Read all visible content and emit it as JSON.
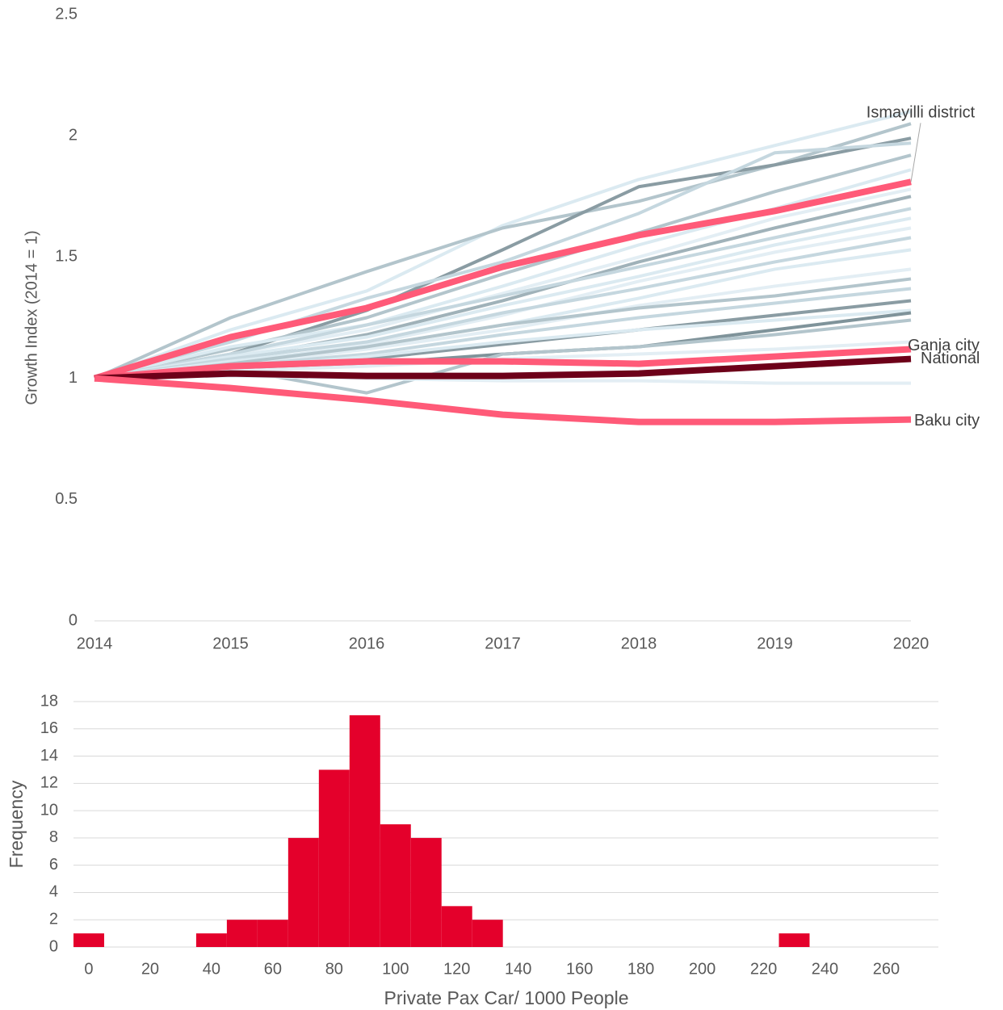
{
  "chart_data": [
    {
      "type": "line",
      "ylabel": "Growth Index (2014 = 1)",
      "x": [
        2014,
        2015,
        2016,
        2017,
        2018,
        2019,
        2020
      ],
      "xlim": [
        2014,
        2020
      ],
      "xticks": [
        2014,
        2015,
        2016,
        2017,
        2018,
        2019,
        2020
      ],
      "ylim": [
        0,
        2.5
      ],
      "yticks": [
        0,
        0.5,
        1,
        1.5,
        2,
        2.5
      ],
      "series": [
        {
          "color": "#dbeaf1",
          "values": [
            1,
            1.2,
            1.36,
            1.63,
            1.82,
            1.96,
            2.1
          ]
        },
        {
          "color": "#b3c5cc",
          "values": [
            1,
            1.25,
            1.44,
            1.62,
            1.73,
            1.88,
            2.05
          ]
        },
        {
          "color": "#8a9ca3",
          "values": [
            1,
            1.1,
            1.28,
            1.53,
            1.79,
            1.88,
            1.99
          ]
        },
        {
          "color": "#c5d7df",
          "values": [
            1,
            1.15,
            1.33,
            1.48,
            1.68,
            1.93,
            1.97
          ]
        },
        {
          "color": "#b3c5cc",
          "values": [
            1,
            1.12,
            1.25,
            1.43,
            1.6,
            1.77,
            1.92
          ]
        },
        {
          "color": "#dbeaf1",
          "values": [
            1,
            1.13,
            1.22,
            1.38,
            1.55,
            1.7,
            1.86
          ]
        },
        {
          "color": "#e3eef4",
          "values": [
            1,
            1.1,
            1.2,
            1.35,
            1.5,
            1.66,
            1.78
          ]
        },
        {
          "color": "#a0b2b9",
          "values": [
            1,
            1.08,
            1.18,
            1.32,
            1.48,
            1.62,
            1.75
          ]
        },
        {
          "color": "#c5d7df",
          "values": [
            1,
            1.1,
            1.22,
            1.34,
            1.46,
            1.58,
            1.7
          ]
        },
        {
          "color": "#dbeaf1",
          "values": [
            1,
            1.09,
            1.17,
            1.3,
            1.42,
            1.55,
            1.66
          ]
        },
        {
          "color": "#e3eef4",
          "values": [
            1,
            1.06,
            1.14,
            1.26,
            1.4,
            1.52,
            1.62
          ]
        },
        {
          "color": "#c5d7df",
          "values": [
            1,
            1.08,
            1.15,
            1.27,
            1.37,
            1.48,
            1.58
          ]
        },
        {
          "color": "#dbeaf1",
          "values": [
            1,
            1.07,
            1.13,
            1.22,
            1.33,
            1.45,
            1.53
          ]
        },
        {
          "color": "#e3eef4",
          "values": [
            1,
            1.05,
            1.12,
            1.2,
            1.3,
            1.38,
            1.45
          ]
        },
        {
          "color": "#b3c5cc",
          "values": [
            1,
            1.06,
            1.13,
            1.22,
            1.29,
            1.34,
            1.41
          ]
        },
        {
          "color": "#c5d7df",
          "values": [
            1,
            1.05,
            1.1,
            1.18,
            1.25,
            1.31,
            1.37
          ]
        },
        {
          "color": "#8a9ca3",
          "values": [
            1,
            1.04,
            1.08,
            1.14,
            1.2,
            1.26,
            1.32
          ]
        },
        {
          "color": "#dbeaf1",
          "values": [
            1,
            1.04,
            1.09,
            1.15,
            1.2,
            1.24,
            1.28
          ]
        },
        {
          "color": "#7f939a",
          "values": [
            1,
            1.03,
            1.06,
            1.1,
            1.13,
            1.2,
            1.27
          ]
        },
        {
          "color": "#b3c5cc",
          "values": [
            1,
            1.04,
            0.94,
            1.1,
            1.13,
            1.18,
            1.24
          ]
        },
        {
          "color": "#e3eef4",
          "values": [
            1,
            1.03,
            1.05,
            1.08,
            1.1,
            1.12,
            1.15
          ]
        },
        {
          "color": "#e3eef4",
          "values": [
            1,
            1.01,
            1.0,
            0.99,
            0.99,
            0.98,
            0.98
          ]
        },
        {
          "name": "Ismayilli district",
          "color": "#ff5a78",
          "values": [
            1,
            1.17,
            1.29,
            1.46,
            1.59,
            1.69,
            1.81
          ]
        },
        {
          "name": "Ganja city",
          "color": "#ff5a78",
          "values": [
            1,
            1.05,
            1.07,
            1.07,
            1.06,
            1.09,
            1.12
          ]
        },
        {
          "name": "National",
          "color": "#6d0019",
          "values": [
            1,
            1.02,
            1.01,
            1.01,
            1.02,
            1.05,
            1.08
          ]
        },
        {
          "name": "Baku city",
          "color": "#ff5a78",
          "values": [
            1,
            0.96,
            0.91,
            0.85,
            0.82,
            0.82,
            0.83
          ]
        }
      ]
    },
    {
      "type": "histogram",
      "xlabel": "Private Pax Car/ 1000 People",
      "ylabel": "Frequency",
      "bins": [
        -5,
        5,
        15,
        25,
        35,
        45,
        55,
        65,
        75,
        85,
        95,
        105,
        115,
        125,
        135,
        145,
        155,
        165,
        175,
        185,
        195,
        205,
        215,
        225,
        235,
        245,
        255,
        265
      ],
      "values": [
        1,
        0,
        0,
        0,
        1,
        2,
        2,
        8,
        13,
        17,
        9,
        8,
        3,
        2,
        0,
        0,
        0,
        0,
        0,
        0,
        0,
        0,
        0,
        1,
        0,
        0,
        0
      ],
      "color": "#e4002b",
      "xlim": [
        -5,
        277
      ],
      "xticks": [
        0,
        20,
        40,
        60,
        80,
        100,
        120,
        140,
        160,
        180,
        200,
        220,
        240,
        260
      ],
      "ylim": [
        0,
        18
      ],
      "yticks": [
        0,
        2,
        4,
        6,
        8,
        10,
        12,
        14,
        16,
        18
      ],
      "grid": true
    }
  ]
}
